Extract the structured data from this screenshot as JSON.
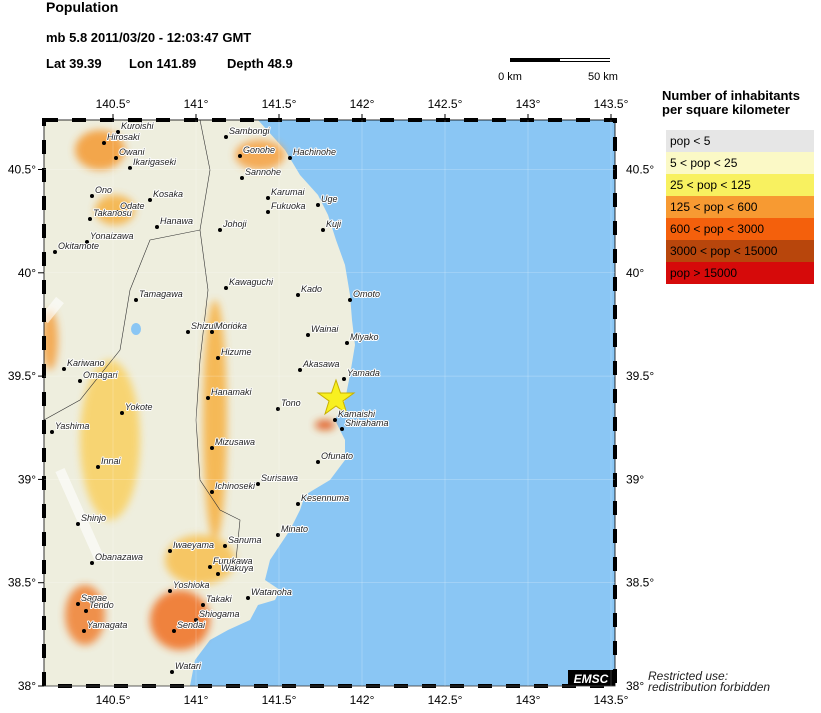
{
  "header": {
    "title": "Population",
    "event": "mb 5.8  2011/03/20 - 12:03:47 GMT",
    "lat": "Lat 39.39",
    "lon": "Lon 141.89",
    "depth": "Depth  48.9"
  },
  "scale_bar": {
    "start": "0 km",
    "end": "50 km"
  },
  "map": {
    "lon_ticks": [
      {
        "value": 140.5,
        "label": "140.5°"
      },
      {
        "value": 141,
        "label": "141°"
      },
      {
        "value": 141.5,
        "label": "141.5°"
      },
      {
        "value": 142,
        "label": "142°"
      },
      {
        "value": 142.5,
        "label": "142.5°"
      },
      {
        "value": 143,
        "label": "143°"
      },
      {
        "value": 143.5,
        "label": "143.5°"
      }
    ],
    "lat_ticks": [
      {
        "value": 38,
        "label": "38°"
      },
      {
        "value": 38.5,
        "label": "38.5°"
      },
      {
        "value": 39,
        "label": "39°"
      },
      {
        "value": 39.5,
        "label": "39.5°"
      },
      {
        "value": 40,
        "label": "40°"
      },
      {
        "value": 40.5,
        "label": "40.5°"
      }
    ],
    "cities": [
      "Kuroishi",
      "Hirosaki",
      "Sambongi",
      "Gonohe",
      "Hachinohe",
      "Owani",
      "Ikarigaseki",
      "Sannohe",
      "Ono",
      "Kosaka",
      "Karumai",
      "Uge",
      "Odate",
      "Fukuoka",
      "Takanosu",
      "Hanawa",
      "Johoji",
      "Kuji",
      "Yonaizawa",
      "Okitamote",
      "Kawaguchi",
      "Kado",
      "Omoto",
      "Tamagawa",
      "Shizukuishi",
      "Morioka",
      "Wainai",
      "Miyako",
      "Hizume",
      "Kariwano",
      "Omagari",
      "Akasawa",
      "Yamada",
      "Hanamaki",
      "Tono",
      "Yokote",
      "Kamaishi",
      "Shirahama",
      "Yashima",
      "Mizusawa",
      "Ofunato",
      "Innai",
      "Surisawa",
      "Ichinoseki",
      "Kesennuma",
      "Shinjo",
      "Minato",
      "Sanuma",
      "Iwaeyama",
      "Obanazawa",
      "Furukawa",
      "Wakuya",
      "Yoshioka",
      "Watanoha",
      "Takaki",
      "Sagae",
      "Tendo",
      "Shiogama",
      "Yamagata",
      "Sendai",
      "Watari"
    ],
    "logo": "EMSC",
    "notice": [
      "Restricted use:",
      "redistribution forbidden"
    ]
  },
  "legend": {
    "title": [
      "Number of inhabitants",
      "per square kilometer"
    ],
    "entries": [
      {
        "label": "pop < 5",
        "color": "#e6e6e6"
      },
      {
        "label": "5 < pop < 25",
        "color": "#fbf9c6"
      },
      {
        "label": "25 < pop < 125",
        "color": "#f8f160"
      },
      {
        "label": "125 < pop < 600",
        "color": "#f79a32"
      },
      {
        "label": "600 < pop < 3000",
        "color": "#f4600c"
      },
      {
        "label": "3000 < pop < 15000",
        "color": "#b8460c"
      },
      {
        "label": "pop > 15000",
        "color": "#d60a0a"
      }
    ]
  }
}
